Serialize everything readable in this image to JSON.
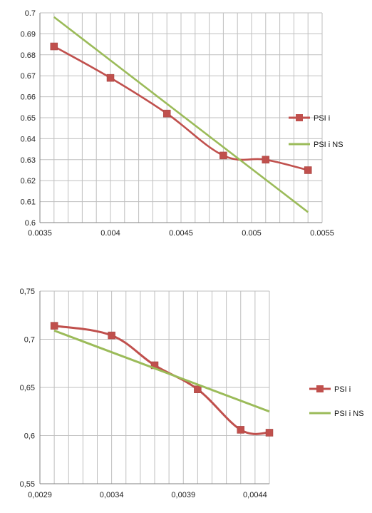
{
  "chart_data": [
    {
      "type": "line",
      "xlim": [
        0.0035,
        0.0055
      ],
      "ylim": [
        0.6,
        0.7
      ],
      "x_ticks": [
        "0.0035",
        "0.004",
        "0.0045",
        "0.005",
        "0.0055"
      ],
      "y_ticks": [
        "0.6",
        "0.61",
        "0.62",
        "0.63",
        "0.64",
        "0.65",
        "0.66",
        "0.67",
        "0.68",
        "0.69",
        "0.7"
      ],
      "grid": true,
      "legend_position": "right",
      "series": [
        {
          "name": "PSI i",
          "color": "#c0504d",
          "marker": "square",
          "x": [
            0.0036,
            0.004,
            0.0044,
            0.0048,
            0.0051,
            0.0054
          ],
          "y": [
            0.684,
            0.669,
            0.652,
            0.632,
            0.63,
            0.625
          ]
        },
        {
          "name": "PSI i NS",
          "color": "#9bbb59",
          "marker": "none",
          "x": [
            0.0036,
            0.0054
          ],
          "y": [
            0.698,
            0.605
          ]
        }
      ]
    },
    {
      "type": "line",
      "xlim": [
        0.0029,
        0.0045
      ],
      "ylim": [
        0.55,
        0.75
      ],
      "x_ticks": [
        "0,0029",
        "0,0034",
        "0,0039",
        "0,0044"
      ],
      "y_ticks": [
        "0,55",
        "0,6",
        "0,65",
        "0,7",
        "0,75"
      ],
      "grid": true,
      "legend_position": "right",
      "series": [
        {
          "name": "PSI i",
          "color": "#c0504d",
          "marker": "square",
          "x": [
            0.003,
            0.0034,
            0.0037,
            0.004,
            0.0043,
            0.0045
          ],
          "y": [
            0.714,
            0.704,
            0.673,
            0.648,
            0.606,
            0.603
          ]
        },
        {
          "name": "PSI i NS",
          "color": "#9bbb59",
          "marker": "none",
          "x": [
            0.003,
            0.0045
          ],
          "y": [
            0.709,
            0.625
          ]
        }
      ]
    }
  ]
}
